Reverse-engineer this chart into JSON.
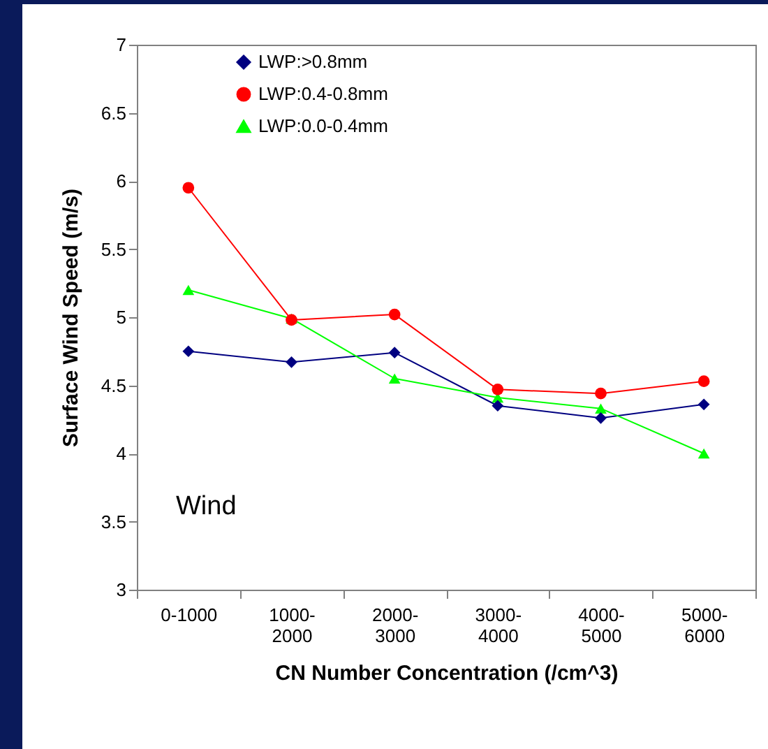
{
  "chart_data": {
    "type": "line",
    "xlabel": "CN Number Concentration (/cm^3)",
    "ylabel": "Surface Wind Speed (m/s)",
    "categories": [
      "0-1000",
      "1000-2000",
      "2000-3000",
      "3000-4000",
      "4000-5000",
      "5000-6000"
    ],
    "series": [
      {
        "name": "LWP:>0.8mm",
        "color": "#000080",
        "marker": "diamond",
        "values": [
          4.75,
          4.67,
          4.74,
          4.35,
          4.26,
          4.36
        ]
      },
      {
        "name": "LWP:0.4-0.8mm",
        "color": "#ff0000",
        "marker": "circle",
        "values": [
          5.95,
          4.98,
          5.02,
          4.47,
          4.44,
          4.53
        ]
      },
      {
        "name": "LWP:0.0-0.4mm",
        "color": "#00ff00",
        "marker": "triangle",
        "values": [
          5.2,
          4.99,
          4.55,
          4.41,
          4.33,
          4.0
        ]
      }
    ],
    "ylim": [
      3,
      7
    ],
    "yticks": [
      3,
      3.5,
      4,
      4.5,
      5,
      5.5,
      6,
      6.5,
      7
    ],
    "grid": false,
    "legend": "top left",
    "line_style": "solid",
    "annotations": [
      "Wind"
    ]
  }
}
